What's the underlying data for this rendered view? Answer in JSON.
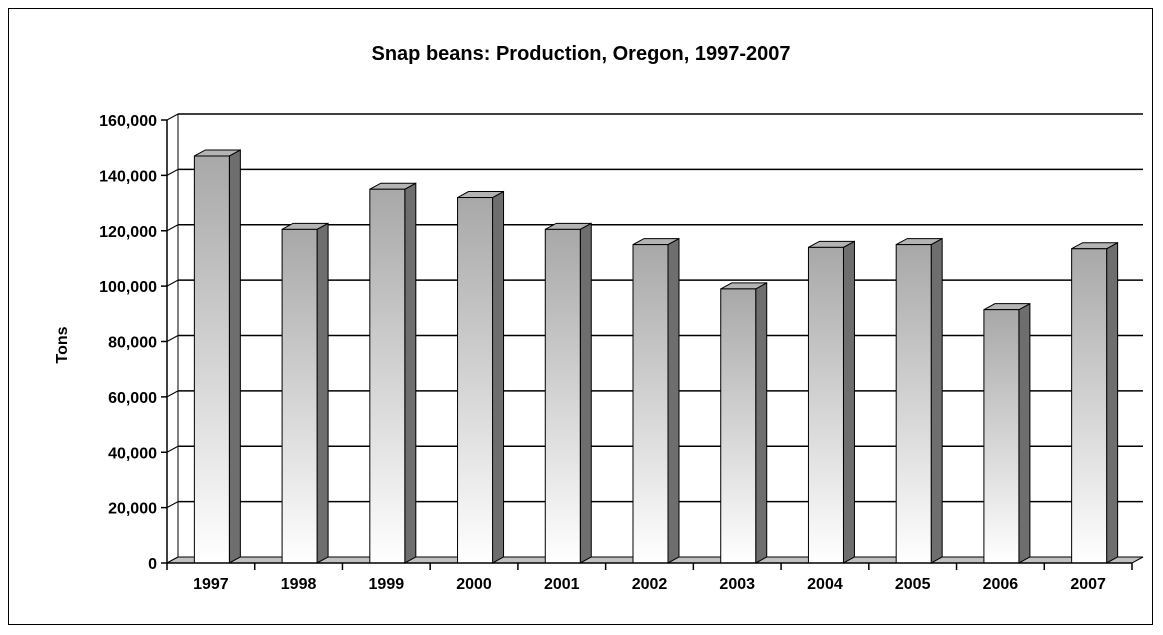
{
  "chart_data": {
    "type": "bar",
    "title": "Snap beans: Production, Oregon, 1997-2007",
    "xlabel": "",
    "ylabel": "Tons",
    "categories": [
      "1997",
      "1998",
      "1999",
      "2000",
      "2001",
      "2002",
      "2003",
      "2004",
      "2005",
      "2006",
      "2007"
    ],
    "values": [
      147000,
      120500,
      135000,
      132000,
      120500,
      115000,
      99000,
      114000,
      115000,
      91500,
      113500
    ],
    "ylim": [
      0,
      160000
    ],
    "yticks": [
      0,
      20000,
      40000,
      60000,
      80000,
      100000,
      120000,
      140000,
      160000
    ],
    "ytick_labels": [
      "0",
      "20,000",
      "40,000",
      "60,000",
      "80,000",
      "100,000",
      "120,000",
      "140,000",
      "160,000"
    ],
    "grid": true,
    "legend": "none",
    "style": "3d-bar",
    "colors": {
      "bar_top": "#a8a8a8",
      "bar_bottom": "#ffffff",
      "bar_side": "#6e6e6e",
      "bar_cap": "#b4b4b4",
      "floor": "#c0c0c0",
      "grid": "#000000"
    }
  }
}
